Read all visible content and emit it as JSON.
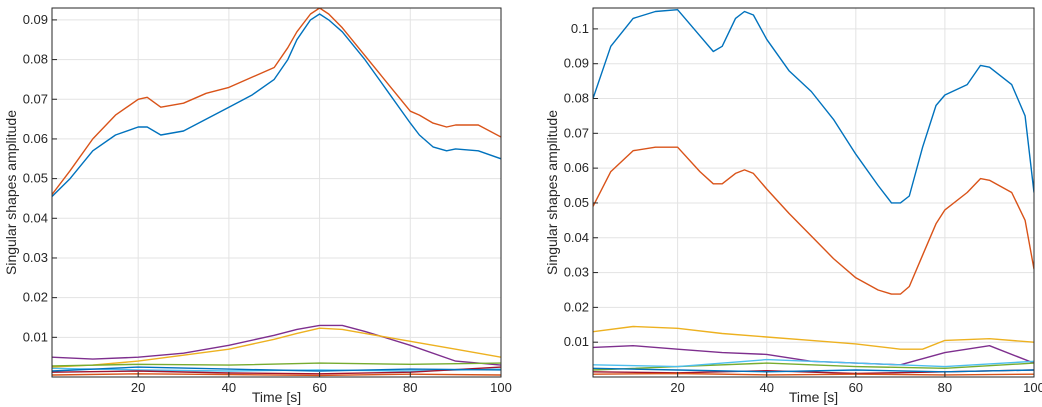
{
  "chart_data": [
    {
      "type": "line",
      "title": "",
      "xlabel": "Time [s]",
      "ylabel": "Singular shapes amplitude",
      "xlim": [
        1,
        100
      ],
      "ylim": [
        0,
        0.093
      ],
      "xticks": [
        20,
        40,
        60,
        80,
        100
      ],
      "yticks": [
        0.01,
        0.02,
        0.03,
        0.04,
        0.05,
        0.06,
        0.07,
        0.08,
        0.09
      ],
      "grid": true,
      "series": [
        {
          "color": "#d95319",
          "x": [
            1,
            5,
            10,
            15,
            20,
            22,
            25,
            30,
            35,
            40,
            45,
            50,
            53,
            55,
            58,
            60,
            62,
            65,
            70,
            75,
            80,
            82,
            85,
            88,
            90,
            95,
            100
          ],
          "values": [
            0.046,
            0.052,
            0.06,
            0.066,
            0.07,
            0.0705,
            0.068,
            0.069,
            0.0715,
            0.073,
            0.0755,
            0.078,
            0.083,
            0.087,
            0.0915,
            0.093,
            0.0915,
            0.088,
            0.081,
            0.074,
            0.067,
            0.066,
            0.064,
            0.063,
            0.0635,
            0.0635,
            0.0605
          ]
        },
        {
          "color": "#0072bd",
          "x": [
            1,
            5,
            10,
            15,
            20,
            22,
            25,
            30,
            35,
            40,
            45,
            50,
            53,
            55,
            58,
            60,
            62,
            65,
            70,
            75,
            80,
            82,
            85,
            88,
            90,
            95,
            100
          ],
          "values": [
            0.0455,
            0.05,
            0.057,
            0.061,
            0.063,
            0.063,
            0.061,
            0.062,
            0.065,
            0.068,
            0.071,
            0.075,
            0.08,
            0.085,
            0.09,
            0.0915,
            0.09,
            0.087,
            0.08,
            0.072,
            0.064,
            0.061,
            0.058,
            0.057,
            0.0575,
            0.057,
            0.055
          ]
        },
        {
          "color": "#7e2f8e",
          "x": [
            1,
            10,
            20,
            30,
            40,
            50,
            55,
            60,
            65,
            70,
            80,
            90,
            100
          ],
          "values": [
            0.005,
            0.0045,
            0.005,
            0.006,
            0.008,
            0.0105,
            0.012,
            0.013,
            0.013,
            0.0115,
            0.008,
            0.004,
            0.003
          ]
        },
        {
          "color": "#edb120",
          "x": [
            1,
            10,
            20,
            30,
            40,
            50,
            55,
            60,
            65,
            70,
            80,
            90,
            100
          ],
          "values": [
            0.0025,
            0.003,
            0.004,
            0.0055,
            0.007,
            0.0095,
            0.011,
            0.0123,
            0.012,
            0.011,
            0.009,
            0.007,
            0.005
          ]
        },
        {
          "color": "#77ac30",
          "x": [
            1,
            20,
            40,
            60,
            80,
            100
          ],
          "values": [
            0.0028,
            0.0032,
            0.003,
            0.0035,
            0.0032,
            0.0035
          ]
        },
        {
          "color": "#4dbeee",
          "x": [
            1,
            20,
            40,
            60,
            80,
            100
          ],
          "values": [
            0.0022,
            0.0018,
            0.0015,
            0.0018,
            0.0015,
            0.002
          ]
        },
        {
          "color": "#a2142f",
          "x": [
            1,
            20,
            40,
            60,
            80,
            100
          ],
          "values": [
            0.0012,
            0.0015,
            0.001,
            0.0008,
            0.0012,
            0.0025
          ]
        },
        {
          "color": "#0072bd",
          "x": [
            1,
            20,
            40,
            60,
            80,
            100
          ],
          "values": [
            0.0015,
            0.0025,
            0.002,
            0.0015,
            0.002,
            0.0018
          ]
        },
        {
          "color": "#d95319",
          "x": [
            1,
            20,
            40,
            60,
            80,
            100
          ],
          "values": [
            0.0005,
            0.0008,
            0.0006,
            0.0004,
            0.0007,
            0.0005
          ]
        }
      ]
    },
    {
      "type": "line",
      "title": "",
      "xlabel": "Time [s]",
      "ylabel": "Singular shapes amplitude",
      "xlim": [
        1,
        100
      ],
      "ylim": [
        0,
        0.106
      ],
      "xticks": [
        20,
        40,
        60,
        80,
        100
      ],
      "yticks": [
        0.01,
        0.02,
        0.03,
        0.04,
        0.05,
        0.06,
        0.07,
        0.08,
        0.09,
        0.1
      ],
      "grid": true,
      "series": [
        {
          "color": "#0072bd",
          "x": [
            1,
            5,
            10,
            15,
            20,
            25,
            28,
            30,
            33,
            35,
            37,
            40,
            45,
            50,
            55,
            60,
            65,
            68,
            70,
            72,
            75,
            78,
            80,
            85,
            88,
            90,
            95,
            98,
            100
          ],
          "values": [
            0.08,
            0.095,
            0.103,
            0.105,
            0.1055,
            0.098,
            0.0935,
            0.095,
            0.103,
            0.105,
            0.104,
            0.097,
            0.088,
            0.082,
            0.074,
            0.064,
            0.055,
            0.05,
            0.05,
            0.052,
            0.066,
            0.078,
            0.081,
            0.084,
            0.0895,
            0.089,
            0.084,
            0.075,
            0.053
          ]
        },
        {
          "color": "#d95319",
          "x": [
            1,
            5,
            10,
            15,
            20,
            25,
            28,
            30,
            33,
            35,
            37,
            40,
            45,
            50,
            55,
            60,
            65,
            68,
            70,
            72,
            75,
            78,
            80,
            85,
            88,
            90,
            95,
            98,
            100
          ],
          "values": [
            0.049,
            0.059,
            0.065,
            0.066,
            0.066,
            0.059,
            0.0555,
            0.0555,
            0.0585,
            0.0595,
            0.0585,
            0.054,
            0.047,
            0.0405,
            0.034,
            0.0285,
            0.025,
            0.0238,
            0.0238,
            0.026,
            0.035,
            0.044,
            0.048,
            0.053,
            0.057,
            0.0565,
            0.053,
            0.045,
            0.031
          ]
        },
        {
          "color": "#edb120",
          "x": [
            1,
            10,
            20,
            30,
            40,
            50,
            60,
            70,
            75,
            80,
            90,
            100
          ],
          "values": [
            0.013,
            0.0145,
            0.014,
            0.0125,
            0.0115,
            0.0105,
            0.0095,
            0.008,
            0.008,
            0.0105,
            0.011,
            0.01
          ]
        },
        {
          "color": "#7e2f8e",
          "x": [
            1,
            10,
            20,
            30,
            40,
            50,
            60,
            70,
            80,
            90,
            100
          ],
          "values": [
            0.0085,
            0.009,
            0.008,
            0.007,
            0.0065,
            0.0045,
            0.004,
            0.0035,
            0.007,
            0.009,
            0.004
          ]
        },
        {
          "color": "#77ac30",
          "x": [
            1,
            20,
            40,
            60,
            80,
            100
          ],
          "values": [
            0.002,
            0.003,
            0.004,
            0.003,
            0.0025,
            0.004
          ]
        },
        {
          "color": "#4dbeee",
          "x": [
            1,
            20,
            40,
            60,
            80,
            100
          ],
          "values": [
            0.0035,
            0.003,
            0.005,
            0.004,
            0.003,
            0.0045
          ]
        },
        {
          "color": "#a2142f",
          "x": [
            1,
            20,
            40,
            60,
            80,
            100
          ],
          "values": [
            0.0015,
            0.0012,
            0.0018,
            0.001,
            0.0015,
            0.002
          ]
        },
        {
          "color": "#0072bd",
          "x": [
            1,
            20,
            40,
            60,
            80,
            100
          ],
          "values": [
            0.0025,
            0.002,
            0.0015,
            0.002,
            0.0015,
            0.002
          ]
        },
        {
          "color": "#d95319",
          "x": [
            1,
            20,
            40,
            60,
            80,
            100
          ],
          "values": [
            0.0008,
            0.001,
            0.0006,
            0.0008,
            0.0006,
            0.0008
          ]
        }
      ]
    }
  ]
}
